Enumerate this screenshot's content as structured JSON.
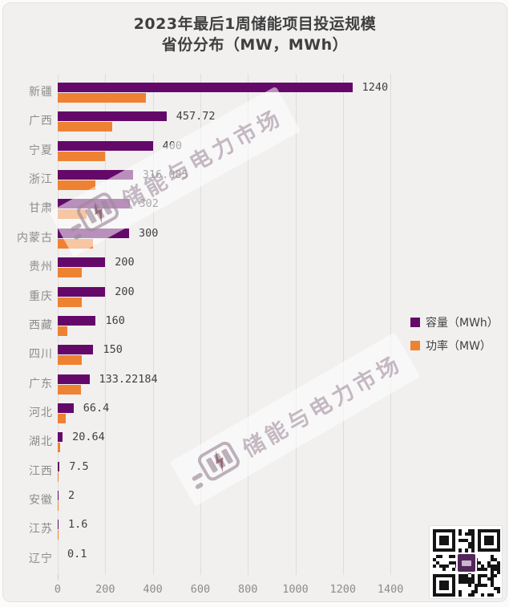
{
  "title": {
    "line1": "2023年最后1周储能项目投运规模",
    "line2": "省份分布（MW，MWh）"
  },
  "legend": [
    {
      "label": "容量（MWh）",
      "color": "#640969"
    },
    {
      "label": "功率（MW）",
      "color": "#ee8233"
    }
  ],
  "watermark": {
    "text": "储能与电力市场"
  },
  "chart_data": {
    "type": "bar",
    "orientation": "horizontal",
    "title": "2023年最后1周储能项目投运规模 省份分布（MW，MWh）",
    "categories": [
      "新疆",
      "广西",
      "宁夏",
      "浙江",
      "甘肃",
      "内蒙古",
      "贵州",
      "重庆",
      "西藏",
      "四川",
      "广东",
      "河北",
      "湖北",
      "江西",
      "安徽",
      "江苏",
      "辽宁"
    ],
    "series": [
      {
        "name": "容量（MWh）",
        "color": "#640969",
        "values": [
          1240,
          457.72,
          400,
          316.085,
          302,
          300,
          200,
          200,
          160,
          150,
          133.22184,
          66.4,
          20.64,
          7.5,
          2,
          1.6,
          0.1
        ],
        "data_labels": [
          "1240",
          "457.72",
          "400",
          "316.085",
          "302",
          "300",
          "200",
          "200",
          "160",
          "150",
          "133.22184",
          "66.4",
          "20.64",
          "7.5",
          "2",
          "1.6",
          "0.1"
        ]
      },
      {
        "name": "功率（MW）",
        "color": "#ee8233",
        "values": [
          370,
          230,
          200,
          158,
          120,
          150,
          100,
          100,
          40,
          100,
          98,
          33.2,
          10,
          4,
          1,
          0.8,
          0.05
        ],
        "estimated": true
      }
    ],
    "x_ticks": [
      0,
      200,
      400,
      600,
      800,
      1000,
      1200,
      1400
    ],
    "x_tick_labels": [
      "0",
      "200",
      "400",
      "600",
      "800",
      "1000",
      "1200",
      "1400"
    ],
    "xlim": [
      0,
      1400
    ],
    "grid": "vertical",
    "legend_position": "right",
    "data_labels_on": "容量（MWh）"
  }
}
